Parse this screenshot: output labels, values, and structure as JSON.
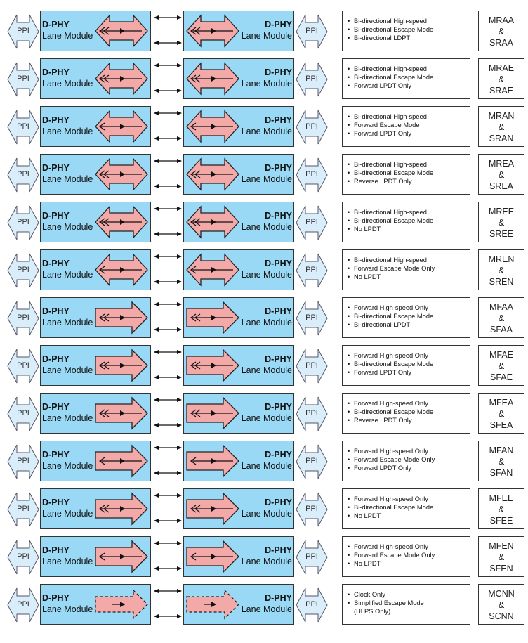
{
  "colors": {
    "module_fill": "#99d9f5",
    "arrow_fill": "#f4a9a9",
    "ppi_fill": "#d9eefa",
    "stroke": "#333333"
  },
  "rows": [
    {
      "module_title": "D-PHY",
      "module_label": "Lane Module",
      "ppi": "PPI",
      "arrow": "bidir",
      "hs_lines": "bidir",
      "features": [
        "Bi-directional High-speed",
        "Bi-directional Escape Mode",
        "Bi-directional LDPT"
      ],
      "codes": [
        "MRAA",
        "&",
        "SRAA"
      ]
    },
    {
      "module_title": "D-PHY",
      "module_label": "Lane Module",
      "ppi": "PPI",
      "arrow": "bidir",
      "hs_lines": "bidir",
      "features": [
        "Bi-directional High-speed",
        "Bi-directional Escape Mode",
        "Forward LPDT Only"
      ],
      "codes": [
        "MRAE",
        "&",
        "SRAE"
      ]
    },
    {
      "module_title": "D-PHY",
      "module_label": "Lane Module",
      "ppi": "PPI",
      "arrow": "bidir",
      "hs_lines": "fwd",
      "features": [
        "Bi-directional High-speed",
        "Forward Escape Mode",
        "Forward LPDT Only"
      ],
      "codes": [
        "MRAN",
        "&",
        "SRAN"
      ]
    },
    {
      "module_title": "D-PHY",
      "module_label": "Lane Module",
      "ppi": "PPI",
      "arrow": "bidir",
      "hs_lines": "bidir",
      "features": [
        "Bi-directional High-speed",
        "Bi-directional Escape Mode",
        "Reverse LPDT Only"
      ],
      "codes": [
        "MREA",
        "&",
        "SREA"
      ]
    },
    {
      "module_title": "D-PHY",
      "module_label": "Lane Module",
      "ppi": "PPI",
      "arrow": "bidir",
      "hs_lines": "bidir",
      "features": [
        "Bi-directional High-speed",
        "Bi-directional Escape Mode",
        "No LPDT"
      ],
      "codes": [
        "MREE",
        "&",
        "SREE"
      ]
    },
    {
      "module_title": "D-PHY",
      "module_label": "Lane Module",
      "ppi": "PPI",
      "arrow": "bidir",
      "hs_lines": "fwd",
      "features": [
        "Bi-directional High-speed",
        "Forward Escape Mode Only",
        "No LPDT"
      ],
      "codes": [
        "MREN",
        "&",
        "SREN"
      ]
    },
    {
      "module_title": "D-PHY",
      "module_label": "Lane Module",
      "ppi": "PPI",
      "arrow": "fwd",
      "hs_lines": "bidir",
      "features": [
        "Forward High-speed Only",
        "Bi-directional Escape Mode",
        "Bi-directional LPDT"
      ],
      "codes": [
        "MFAA",
        "&",
        "SFAA"
      ]
    },
    {
      "module_title": "D-PHY",
      "module_label": "Lane Module",
      "ppi": "PPI",
      "arrow": "fwd",
      "hs_lines": "bidir",
      "features": [
        "Forward High-speed Only",
        "Bi-directional Escape Mode",
        "Forward LPDT Only"
      ],
      "codes": [
        "MFAE",
        "&",
        "SFAE"
      ]
    },
    {
      "module_title": "D-PHY",
      "module_label": "Lane Module",
      "ppi": "PPI",
      "arrow": "fwd",
      "hs_lines": "bidir",
      "features": [
        "Forward High-speed Only",
        "Bi-directional Escape Mode",
        "Reverse LPDT Only"
      ],
      "codes": [
        "MFEA",
        "&",
        "SFEA"
      ]
    },
    {
      "module_title": "D-PHY",
      "module_label": "Lane Module",
      "ppi": "PPI",
      "arrow": "fwd",
      "hs_lines": "fwd",
      "features": [
        "Forward High-speed Only",
        "Forward Escape Mode Only",
        "Forward LPDT Only"
      ],
      "codes": [
        "MFAN",
        "&",
        "SFAN"
      ]
    },
    {
      "module_title": "D-PHY",
      "module_label": "Lane Module",
      "ppi": "PPI",
      "arrow": "fwd",
      "hs_lines": "bidir",
      "features": [
        "Forward High-speed Only",
        "Bi-directional Escape Mode",
        "No LPDT"
      ],
      "codes": [
        "MFEE",
        "&",
        "SFEE"
      ]
    },
    {
      "module_title": "D-PHY",
      "module_label": "Lane Module",
      "ppi": "PPI",
      "arrow": "fwd",
      "hs_lines": "fwd",
      "features": [
        "Forward High-speed Only",
        "Forward Escape Mode Only",
        "No LPDT"
      ],
      "codes": [
        "MFEN",
        "&",
        "SFEN"
      ]
    },
    {
      "module_title": "D-PHY",
      "module_label": "Lane Module",
      "ppi": "PPI",
      "arrow": "clock",
      "hs_lines": "clock",
      "features": [
        "Clock Only",
        "Simplified Escape Mode",
        "(ULPS Only)"
      ],
      "codes": [
        "MCNN",
        "&",
        "SCNN"
      ]
    }
  ]
}
